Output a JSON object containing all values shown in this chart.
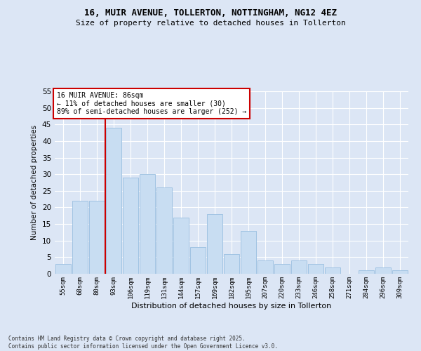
{
  "title1": "16, MUIR AVENUE, TOLLERTON, NOTTINGHAM, NG12 4EZ",
  "title2": "Size of property relative to detached houses in Tollerton",
  "xlabel": "Distribution of detached houses by size in Tollerton",
  "ylabel": "Number of detached properties",
  "categories": [
    "55sqm",
    "68sqm",
    "80sqm",
    "93sqm",
    "106sqm",
    "119sqm",
    "131sqm",
    "144sqm",
    "157sqm",
    "169sqm",
    "182sqm",
    "195sqm",
    "207sqm",
    "220sqm",
    "233sqm",
    "246sqm",
    "258sqm",
    "271sqm",
    "284sqm",
    "296sqm",
    "309sqm"
  ],
  "values": [
    3,
    22,
    22,
    44,
    29,
    30,
    26,
    17,
    8,
    18,
    6,
    13,
    4,
    3,
    4,
    3,
    2,
    0,
    1,
    2,
    1
  ],
  "bar_color": "#c8ddf2",
  "bar_edgecolor": "#9abfe0",
  "vline_color": "#cc0000",
  "annotation_text": "16 MUIR AVENUE: 86sqm\n← 11% of detached houses are smaller (30)\n89% of semi-detached houses are larger (252) →",
  "annotation_box_edgecolor": "#cc0000",
  "annotation_box_facecolor": "#ffffff",
  "ylim": [
    0,
    55
  ],
  "yticks": [
    0,
    5,
    10,
    15,
    20,
    25,
    30,
    35,
    40,
    45,
    50,
    55
  ],
  "background_color": "#dce6f5",
  "grid_color": "#ffffff",
  "footer1": "Contains HM Land Registry data © Crown copyright and database right 2025.",
  "footer2": "Contains public sector information licensed under the Open Government Licence v3.0."
}
